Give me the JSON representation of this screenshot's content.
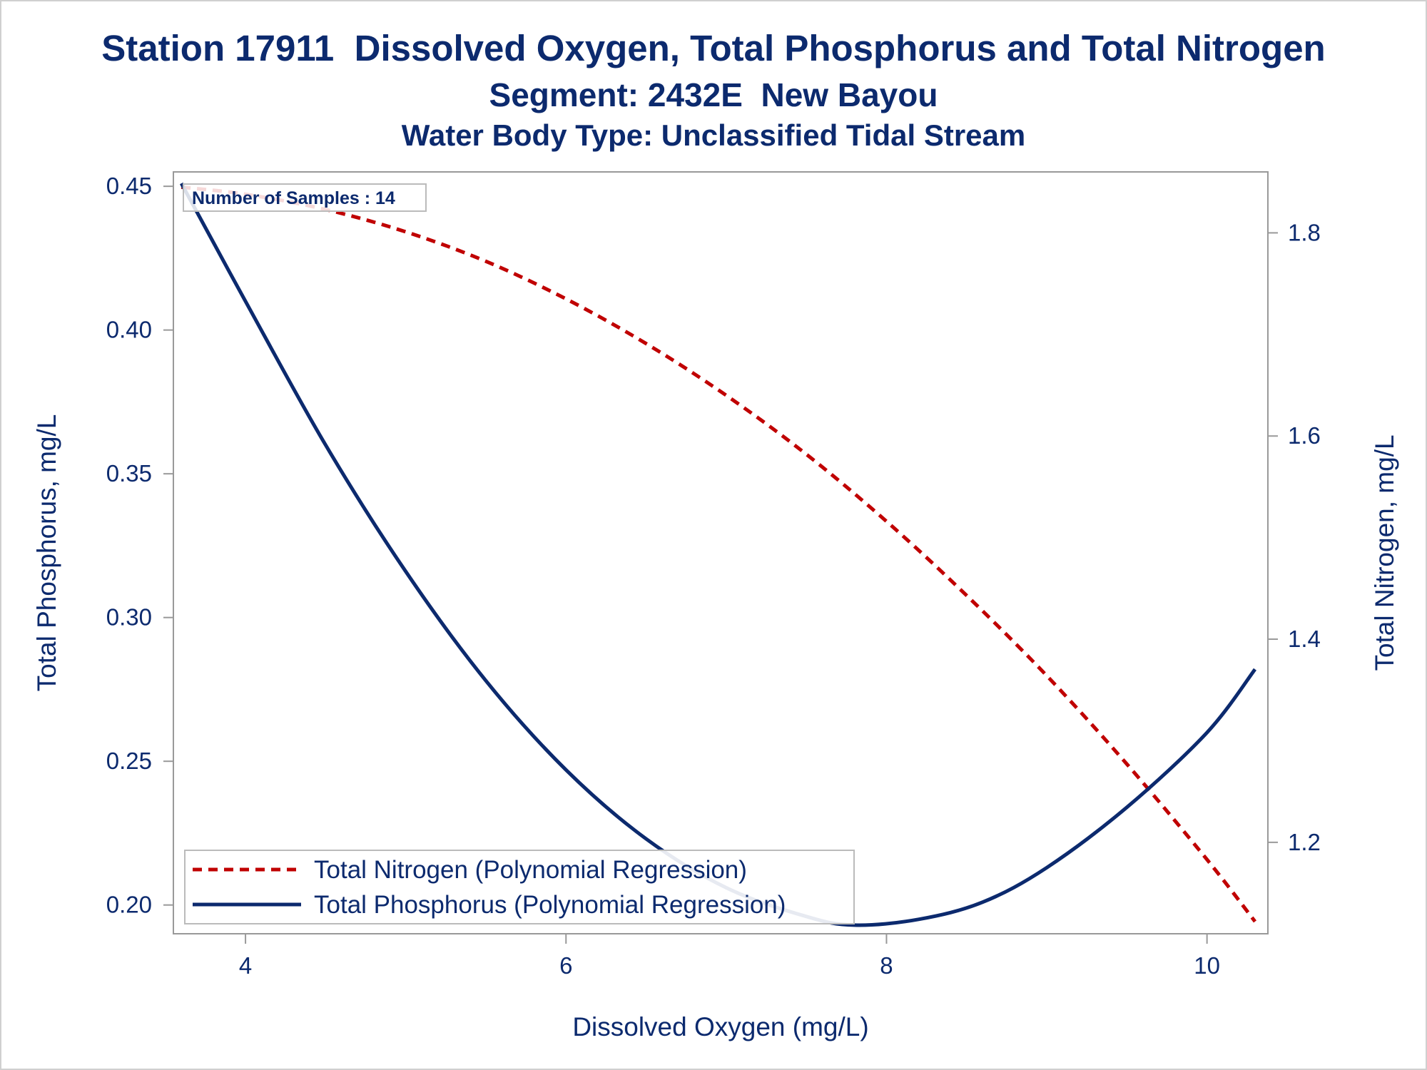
{
  "chart_data": {
    "type": "line",
    "title": "Station 17911  Dissolved Oxygen, Total Phosphorus and Total Nitrogen",
    "subtitle": "Segment: 2432E  New Bayou",
    "subtitle2": "Water Body Type: Unclassified Tidal Stream",
    "xlabel": "Dissolved Oxygen (mg/L)",
    "ylabel_left": "Total Phosphorus, mg/L",
    "ylabel_right": "Total Nitrogen, mg/L",
    "xlim": [
      3.55,
      10.38
    ],
    "ylim_left": [
      0.19,
      0.455
    ],
    "ylim_right": [
      1.11,
      1.86
    ],
    "x_ticks": [
      "4",
      "6",
      "8",
      "10"
    ],
    "y_left_ticks": [
      "0.20",
      "0.25",
      "0.30",
      "0.35",
      "0.40",
      "0.45"
    ],
    "y_right_ticks": [
      "1.2",
      "1.4",
      "1.6",
      "1.8"
    ],
    "annotation": "Number of Samples : 14",
    "legend_position": "bottom-left",
    "colors": {
      "nitrogen": "#c00000",
      "phosphorus": "#0c2a6e",
      "axis": "#999999",
      "text": "#0c2a6e"
    },
    "series": [
      {
        "name": "Total Nitrogen (Polynomial Regression)",
        "axis": "right",
        "style": "dashed",
        "x": [
          3.6,
          4.0,
          4.5,
          5.0,
          5.5,
          6.0,
          6.5,
          7.0,
          7.5,
          8.0,
          8.5,
          9.0,
          9.5,
          10.0,
          10.3
        ],
        "y": [
          1.845,
          1.838,
          1.823,
          1.801,
          1.772,
          1.735,
          1.691,
          1.64,
          1.582,
          1.516,
          1.443,
          1.364,
          1.277,
          1.183,
          1.122
        ]
      },
      {
        "name": "Total Phosphorus (Polynomial Regression)",
        "axis": "left",
        "style": "solid",
        "x": [
          3.6,
          4.0,
          4.5,
          5.0,
          5.5,
          6.0,
          6.5,
          7.0,
          7.5,
          7.8,
          8.2,
          8.6,
          9.0,
          9.5,
          10.0,
          10.3
        ],
        "y": [
          0.451,
          0.41,
          0.36,
          0.316,
          0.278,
          0.247,
          0.223,
          0.206,
          0.196,
          0.193,
          0.195,
          0.201,
          0.213,
          0.234,
          0.26,
          0.282
        ]
      }
    ]
  }
}
